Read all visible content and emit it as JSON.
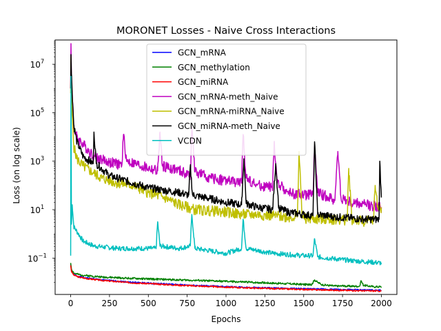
{
  "chart_data": {
    "type": "line",
    "title": "MORONET Losses - Naive Cross Interactions",
    "xlabel": "Epochs",
    "ylabel": "Loss (on log scale)",
    "yscale": "log",
    "xlim": [
      -100,
      2100
    ],
    "ylim_log10": [
      -2.5,
      8.0
    ],
    "grid": false,
    "legend_position": "top-center",
    "x_ticks": [
      0,
      250,
      500,
      750,
      1000,
      1250,
      1500,
      1750,
      2000
    ],
    "x_tick_labels": [
      "0",
      "250",
      "500",
      "750",
      "1000",
      "1250",
      "1500",
      "1750",
      "2000"
    ],
    "y_ticks_log10": [
      -1,
      1,
      3,
      5,
      7
    ],
    "y_tick_labels": [
      {
        "base": "10",
        "exp": "−1"
      },
      {
        "base": "10",
        "exp": "1"
      },
      {
        "base": "10",
        "exp": "3"
      },
      {
        "base": "10",
        "exp": "5"
      },
      {
        "base": "10",
        "exp": "7"
      }
    ],
    "series": [
      {
        "name": "GCN_mRNA",
        "color": "#0000ff",
        "noise": 0.03,
        "seed": 1,
        "points": [
          [
            0,
            -1.25
          ],
          [
            5,
            -1.5
          ],
          [
            20,
            -1.68
          ],
          [
            50,
            -1.76
          ],
          [
            100,
            -1.82
          ],
          [
            200,
            -1.9
          ],
          [
            400,
            -2.0
          ],
          [
            700,
            -2.1
          ],
          [
            1000,
            -2.18
          ],
          [
            1300,
            -2.24
          ],
          [
            1600,
            -2.28
          ],
          [
            2000,
            -2.33
          ]
        ]
      },
      {
        "name": "GCN_methylation",
        "color": "#008000",
        "noise": 0.04,
        "seed": 2,
        "points": [
          [
            0,
            -1.2
          ],
          [
            5,
            -1.45
          ],
          [
            20,
            -1.62
          ],
          [
            50,
            -1.68
          ],
          [
            100,
            -1.72
          ],
          [
            200,
            -1.78
          ],
          [
            400,
            -1.84
          ],
          [
            700,
            -1.9
          ],
          [
            1000,
            -1.96
          ],
          [
            1300,
            -2.03
          ],
          [
            1550,
            -2.1
          ],
          [
            1570,
            -1.9
          ],
          [
            1590,
            -2.0
          ],
          [
            1620,
            -2.1
          ],
          [
            1700,
            -2.15
          ],
          [
            1860,
            -2.16
          ],
          [
            1870,
            -1.95
          ],
          [
            1885,
            -2.12
          ],
          [
            1950,
            -2.18
          ],
          [
            2000,
            -2.18
          ]
        ]
      },
      {
        "name": "GCN_miRNA",
        "color": "#ff0000",
        "noise": 0.03,
        "seed": 3,
        "points": [
          [
            0,
            -1.3
          ],
          [
            5,
            -1.55
          ],
          [
            20,
            -1.7
          ],
          [
            50,
            -1.78
          ],
          [
            100,
            -1.84
          ],
          [
            200,
            -1.92
          ],
          [
            400,
            -2.02
          ],
          [
            700,
            -2.12
          ],
          [
            1000,
            -2.2
          ],
          [
            1300,
            -2.26
          ],
          [
            1600,
            -2.31
          ],
          [
            2000,
            -2.36
          ]
        ]
      },
      {
        "name": "GCN_mRNA-meth_Naive",
        "color": "#bf00bf",
        "noise": 0.22,
        "seed": 4,
        "points": [
          [
            0,
            6.0
          ],
          [
            2,
            7.85
          ],
          [
            5,
            6.3
          ],
          [
            20,
            4.4
          ],
          [
            40,
            4.0
          ],
          [
            80,
            3.7
          ],
          [
            150,
            3.2
          ],
          [
            250,
            2.95
          ],
          [
            330,
            2.85
          ],
          [
            340,
            4.1
          ],
          [
            360,
            3.0
          ],
          [
            500,
            2.7
          ],
          [
            560,
            2.6
          ],
          [
            575,
            4.2
          ],
          [
            590,
            2.8
          ],
          [
            700,
            2.6
          ],
          [
            770,
            2.4
          ],
          [
            780,
            4.4
          ],
          [
            800,
            2.55
          ],
          [
            900,
            2.3
          ],
          [
            1000,
            2.2
          ],
          [
            1100,
            2.1
          ],
          [
            1110,
            4.1
          ],
          [
            1130,
            2.3
          ],
          [
            1200,
            2.0
          ],
          [
            1300,
            1.9
          ],
          [
            1310,
            3.8
          ],
          [
            1330,
            2.1
          ],
          [
            1400,
            1.7
          ],
          [
            1500,
            1.6
          ],
          [
            1560,
            1.6
          ],
          [
            1570,
            3.6
          ],
          [
            1590,
            1.7
          ],
          [
            1700,
            1.4
          ],
          [
            1720,
            3.4
          ],
          [
            1740,
            1.5
          ],
          [
            1800,
            1.3
          ],
          [
            1900,
            1.2
          ],
          [
            2000,
            1.1
          ]
        ]
      },
      {
        "name": "GCN_mRNA-miRNA_Naive",
        "color": "#bfbf00",
        "noise": 0.22,
        "seed": 5,
        "points": [
          [
            0,
            5.8
          ],
          [
            2,
            7.3
          ],
          [
            5,
            5.5
          ],
          [
            20,
            3.6
          ],
          [
            40,
            3.1
          ],
          [
            80,
            2.8
          ],
          [
            150,
            2.5
          ],
          [
            200,
            2.3
          ],
          [
            300,
            2.1
          ],
          [
            400,
            2.0
          ],
          [
            500,
            1.7
          ],
          [
            600,
            1.5
          ],
          [
            700,
            1.2
          ],
          [
            800,
            1.0
          ],
          [
            900,
            0.95
          ],
          [
            1000,
            0.9
          ],
          [
            1100,
            0.8
          ],
          [
            1200,
            0.8
          ],
          [
            1300,
            0.75
          ],
          [
            1400,
            0.7
          ],
          [
            1460,
            0.7
          ],
          [
            1470,
            3.4
          ],
          [
            1490,
            0.75
          ],
          [
            1500,
            0.65
          ],
          [
            1600,
            0.6
          ],
          [
            1700,
            0.6
          ],
          [
            1780,
            0.55
          ],
          [
            1790,
            2.7
          ],
          [
            1810,
            0.6
          ],
          [
            1900,
            0.5
          ],
          [
            1950,
            0.6
          ],
          [
            1960,
            2.0
          ],
          [
            1980,
            1.0
          ],
          [
            2000,
            1.1
          ]
        ]
      },
      {
        "name": "GCN_miRNA-meth_Naive",
        "color": "#000000",
        "noise": 0.16,
        "seed": 6,
        "points": [
          [
            0,
            6.0
          ],
          [
            2,
            7.4
          ],
          [
            5,
            6.6
          ],
          [
            20,
            4.5
          ],
          [
            40,
            3.8
          ],
          [
            80,
            3.2
          ],
          [
            145,
            2.9
          ],
          [
            150,
            4.2
          ],
          [
            165,
            2.9
          ],
          [
            250,
            2.4
          ],
          [
            400,
            2.1
          ],
          [
            500,
            1.9
          ],
          [
            700,
            1.7
          ],
          [
            760,
            1.6
          ],
          [
            770,
            2.8
          ],
          [
            785,
            1.6
          ],
          [
            900,
            1.45
          ],
          [
            1000,
            1.3
          ],
          [
            1100,
            1.2
          ],
          [
            1115,
            3.1
          ],
          [
            1130,
            1.25
          ],
          [
            1200,
            1.1
          ],
          [
            1300,
            1.0
          ],
          [
            1320,
            2.9
          ],
          [
            1340,
            1.05
          ],
          [
            1400,
            0.9
          ],
          [
            1500,
            0.8
          ],
          [
            1560,
            0.75
          ],
          [
            1570,
            3.8
          ],
          [
            1590,
            0.8
          ],
          [
            1700,
            0.7
          ],
          [
            1800,
            0.65
          ],
          [
            1900,
            0.6
          ],
          [
            1985,
            0.6
          ],
          [
            1990,
            3.0
          ],
          [
            2000,
            1.5
          ]
        ]
      },
      {
        "name": "VCDN",
        "color": "#00bfbf",
        "noise": 0.1,
        "seed": 7,
        "points": [
          [
            0,
            -0.9
          ],
          [
            2,
            6.5
          ],
          [
            5,
            0.4
          ],
          [
            10,
            1.2
          ],
          [
            20,
            0.3
          ],
          [
            40,
            0.1
          ],
          [
            80,
            -0.3
          ],
          [
            150,
            -0.5
          ],
          [
            300,
            -0.6
          ],
          [
            550,
            -0.6
          ],
          [
            560,
            0.5
          ],
          [
            575,
            -0.5
          ],
          [
            700,
            -0.6
          ],
          [
            770,
            -0.5
          ],
          [
            780,
            0.8
          ],
          [
            800,
            -0.6
          ],
          [
            900,
            -0.7
          ],
          [
            1000,
            -0.8
          ],
          [
            1100,
            -0.6
          ],
          [
            1110,
            0.6
          ],
          [
            1130,
            -0.6
          ],
          [
            1300,
            -0.8
          ],
          [
            1500,
            -0.9
          ],
          [
            1560,
            -0.9
          ],
          [
            1570,
            -0.2
          ],
          [
            1590,
            -0.95
          ],
          [
            1800,
            -1.1
          ],
          [
            2000,
            -1.2
          ]
        ]
      }
    ]
  }
}
